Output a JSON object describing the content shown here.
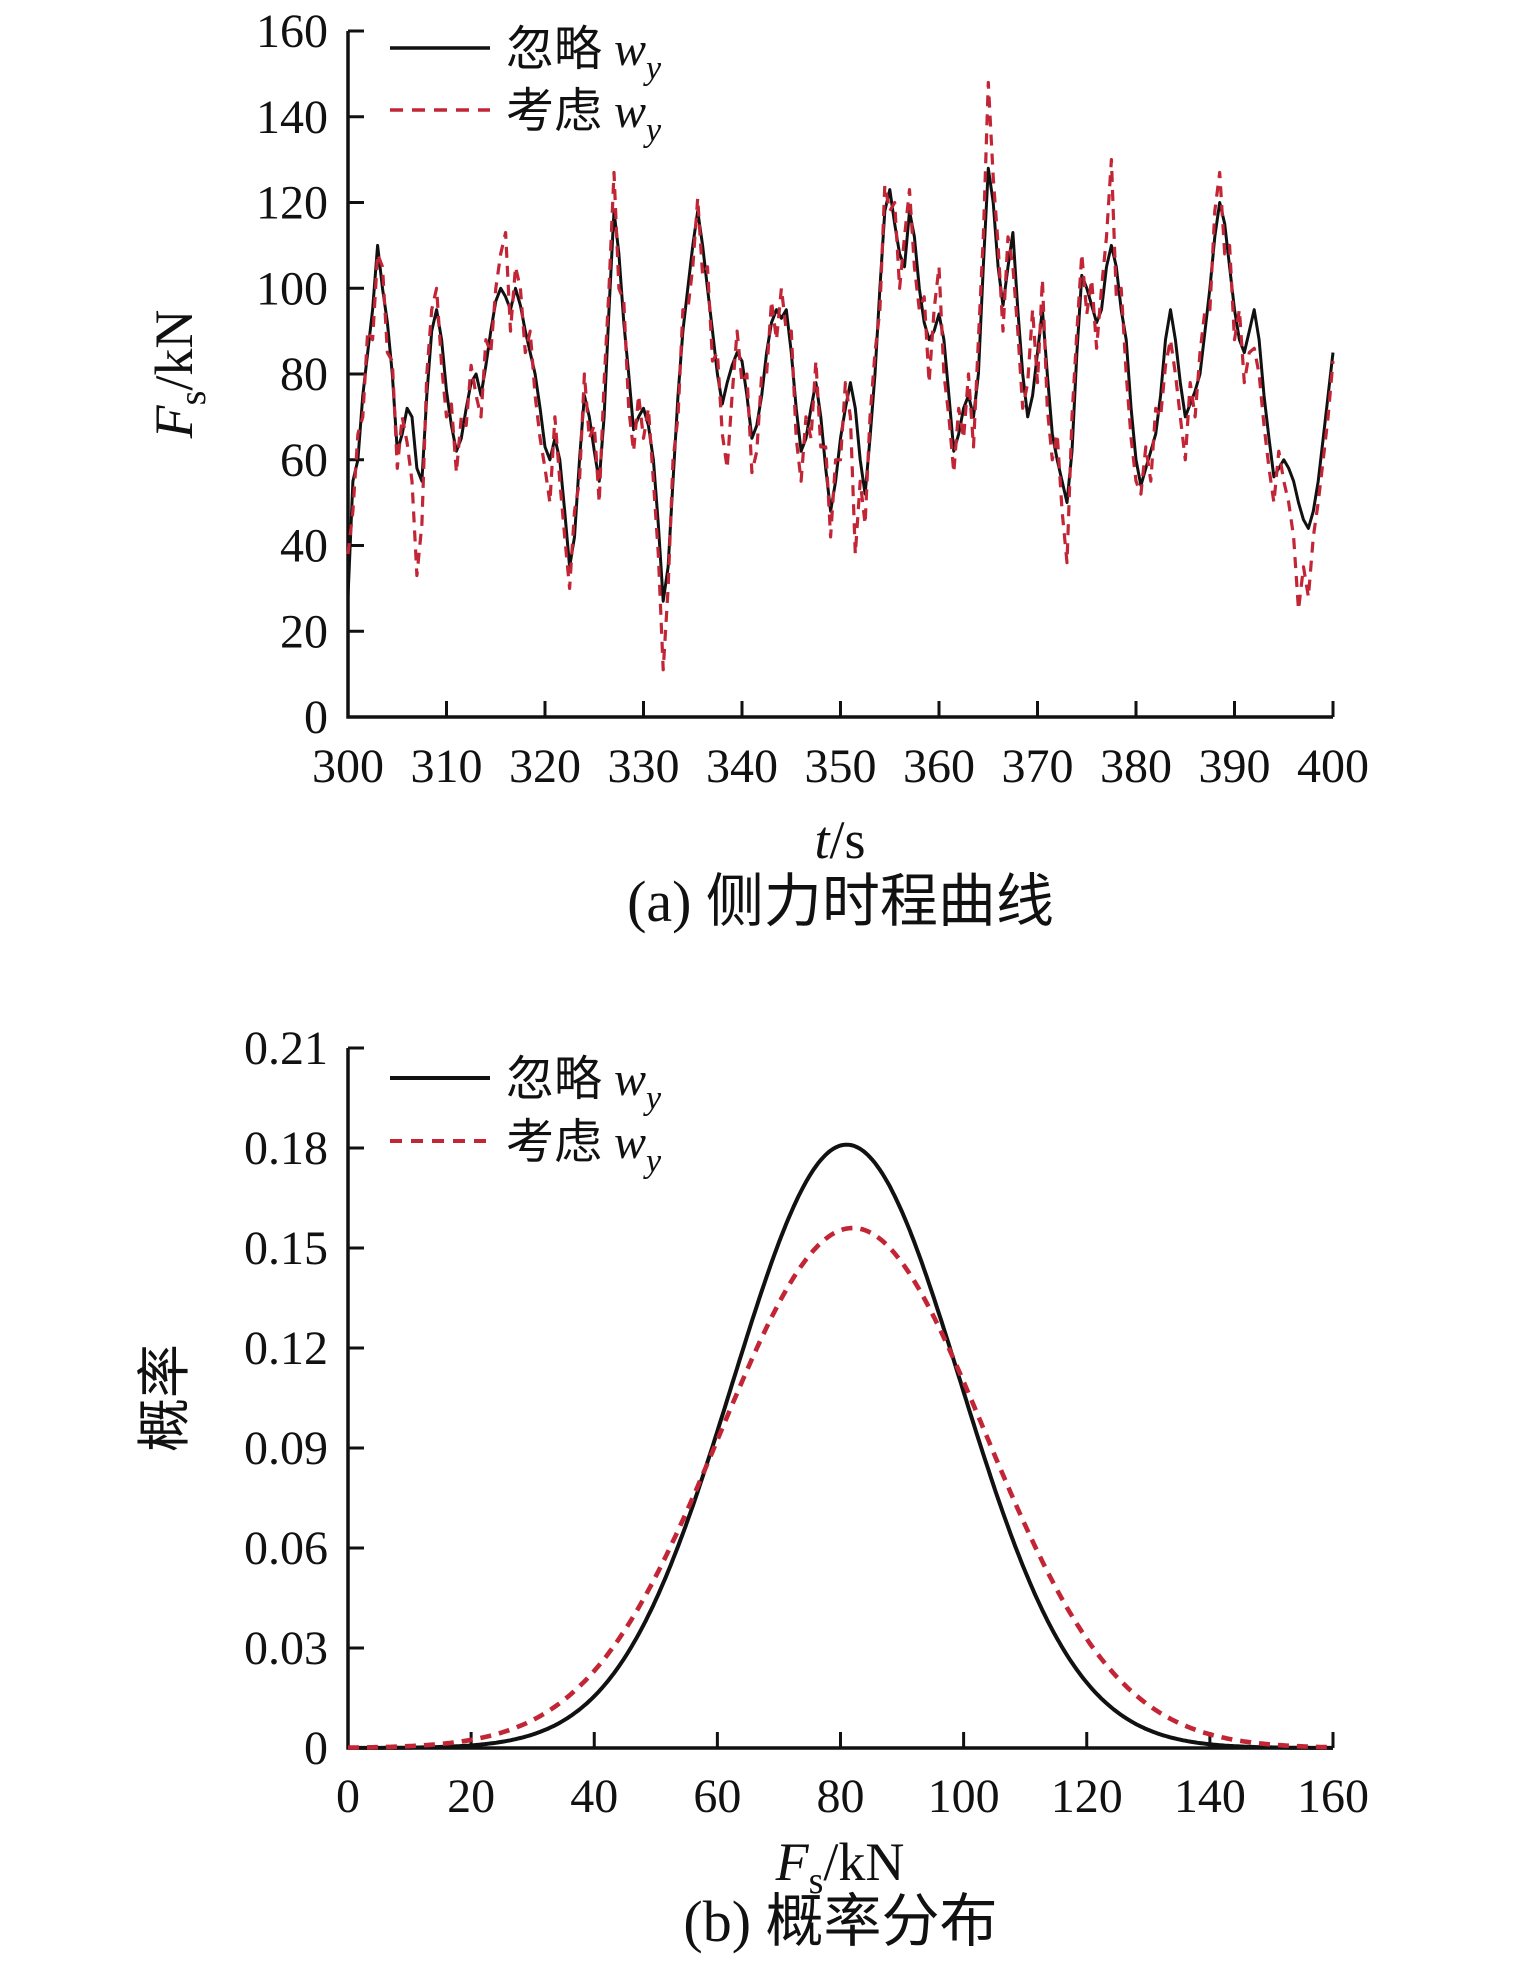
{
  "figure": {
    "background": "#ffffff",
    "text_color": "#111111",
    "accent_red": "#c22535",
    "panels": [
      {
        "id": "a",
        "caption": "(a) 侧力时程曲线",
        "xlabel_parts": [
          {
            "text": "t",
            "italic": true
          },
          {
            "text": "/s"
          }
        ],
        "ylabel_parts": [
          {
            "text": "F",
            "italic": true
          },
          {
            "text": "s",
            "sub": true
          },
          {
            "text": "/kN"
          }
        ],
        "legend": [
          {
            "label": "忽略",
            "var": "w",
            "var_sub": "y",
            "style": "solid",
            "color": "#111111"
          },
          {
            "label": "考虑",
            "var": "w",
            "var_sub": "y",
            "style": "dashed",
            "color": "#c22535"
          }
        ]
      },
      {
        "id": "b",
        "caption": "(b) 概率分布",
        "xlabel_parts": [
          {
            "text": "F",
            "italic": true
          },
          {
            "text": "s",
            "sub": true
          },
          {
            "text": "/kN"
          }
        ],
        "ylabel_parts": [
          {
            "text": "概率"
          }
        ],
        "legend": [
          {
            "label": "忽略",
            "var": "w",
            "var_sub": "y",
            "style": "solid",
            "color": "#111111"
          },
          {
            "label": "考虑",
            "var": "w",
            "var_sub": "y",
            "style": "dashed",
            "color": "#c22535"
          }
        ]
      }
    ]
  },
  "chart_data": [
    {
      "id": "a",
      "type": "line",
      "title": "(a) 侧力时程曲线",
      "xlabel": "t/s",
      "ylabel": "Fs/kN",
      "xlim": [
        300,
        400
      ],
      "ylim": [
        0,
        160
      ],
      "grid": false,
      "legend_position": "top-left",
      "x_tick_labels": [
        "300",
        "310",
        "320",
        "330",
        "340",
        "350",
        "360",
        "370",
        "380",
        "390",
        "400"
      ],
      "y_tick_labels": [
        "0",
        "20",
        "40",
        "60",
        "80",
        "100",
        "120",
        "140",
        "160"
      ],
      "x_start": 300,
      "x_step": 0.5,
      "series": [
        {
          "name": "忽略 wy",
          "style": "solid",
          "color": "#111111",
          "values": [
            28,
            55,
            60,
            75,
            85,
            95,
            110,
            100,
            92,
            80,
            62,
            66,
            72,
            70,
            58,
            55,
            75,
            90,
            95,
            88,
            76,
            68,
            62,
            65,
            72,
            78,
            80,
            75,
            82,
            90,
            97,
            100,
            98,
            95,
            100,
            96,
            90,
            85,
            80,
            72,
            63,
            60,
            65,
            60,
            48,
            35,
            42,
            60,
            75,
            70,
            62,
            55,
            70,
            95,
            118,
            108,
            92,
            80,
            67,
            70,
            72,
            68,
            60,
            45,
            27,
            35,
            55,
            75,
            90,
            100,
            110,
            118,
            110,
            100,
            90,
            80,
            73,
            78,
            82,
            85,
            83,
            75,
            65,
            68,
            75,
            85,
            92,
            95,
            93,
            95,
            85,
            72,
            62,
            65,
            72,
            78,
            70,
            58,
            48,
            55,
            65,
            72,
            78,
            72,
            60,
            52,
            65,
            80,
            100,
            118,
            123,
            115,
            108,
            105,
            118,
            112,
            100,
            92,
            88,
            90,
            94,
            88,
            75,
            62,
            66,
            72,
            75,
            70,
            80,
            105,
            128,
            120,
            105,
            96,
            105,
            113,
            95,
            80,
            70,
            75,
            85,
            95,
            80,
            66,
            60,
            55,
            50,
            62,
            85,
            103,
            100,
            96,
            92,
            95,
            105,
            110,
            105,
            95,
            88,
            72,
            60,
            54,
            58,
            62,
            66,
            75,
            88,
            95,
            88,
            78,
            70,
            73,
            76,
            80,
            90,
            100,
            112,
            120,
            115,
            105,
            95,
            88,
            85,
            90,
            95,
            88,
            75,
            65,
            56,
            58,
            60,
            58,
            55,
            50,
            46,
            44,
            48,
            55,
            65,
            75,
            85
          ]
        },
        {
          "name": "考虑 wy",
          "style": "dashed",
          "color": "#c22535",
          "values": [
            38,
            48,
            66,
            70,
            90,
            88,
            108,
            105,
            85,
            83,
            58,
            70,
            64,
            55,
            33,
            45,
            80,
            95,
            100,
            82,
            70,
            73,
            57,
            70,
            68,
            82,
            75,
            70,
            88,
            85,
            100,
            108,
            113,
            90,
            105,
            100,
            85,
            90,
            75,
            65,
            58,
            50,
            70,
            55,
            42,
            30,
            48,
            55,
            80,
            65,
            68,
            50,
            78,
            100,
            127,
            100,
            97,
            72,
            62,
            75,
            65,
            72,
            55,
            38,
            11,
            30,
            60,
            70,
            95,
            95,
            105,
            121,
            103,
            105,
            83,
            85,
            66,
            58,
            75,
            90,
            78,
            80,
            57,
            62,
            80,
            80,
            97,
            88,
            100,
            90,
            90,
            65,
            55,
            70,
            65,
            83,
            63,
            63,
            42,
            60,
            60,
            78,
            70,
            38,
            55,
            45,
            70,
            85,
            95,
            124,
            118,
            120,
            100,
            112,
            123,
            105,
            95,
            98,
            78,
            95,
            105,
            80,
            70,
            57,
            72,
            65,
            80,
            63,
            88,
            112,
            148,
            126,
            110,
            90,
            112,
            105,
            90,
            72,
            78,
            95,
            78,
            102,
            72,
            60,
            66,
            48,
            36,
            70,
            90,
            108,
            94,
            102,
            86,
            100,
            112,
            130,
            98,
            100,
            80,
            65,
            55,
            52,
            63,
            55,
            72,
            70,
            82,
            88,
            80,
            70,
            60,
            78,
            70,
            85,
            95,
            95,
            118,
            127,
            108,
            110,
            88,
            95,
            78,
            85,
            86,
            80,
            68,
            58,
            50,
            62,
            55,
            50,
            42,
            25,
            35,
            28,
            42,
            50,
            60,
            70,
            83
          ]
        }
      ]
    },
    {
      "id": "b",
      "type": "line",
      "title": "(b) 概率分布",
      "xlabel": "Fs/kN",
      "ylabel": "概率",
      "xlim": [
        0,
        160
      ],
      "ylim": [
        0,
        0.21
      ],
      "grid": false,
      "legend_position": "top-left",
      "x_tick_labels": [
        "0",
        "20",
        "40",
        "60",
        "80",
        "100",
        "120",
        "140",
        "160"
      ],
      "y_tick_labels": [
        "0",
        "0.03",
        "0.06",
        "0.09",
        "0.12",
        "0.15",
        "0.18",
        "0.21"
      ],
      "series": [
        {
          "name": "忽略 wy",
          "style": "solid",
          "color": "#111111",
          "gaussian": {
            "amplitude": 0.181,
            "mean": 81,
            "sigma": 18.5
          }
        },
        {
          "name": "考虑 wy",
          "style": "dashed",
          "color": "#c22535",
          "gaussian": {
            "amplitude": 0.156,
            "mean": 82,
            "sigma": 21.5
          }
        }
      ]
    }
  ]
}
